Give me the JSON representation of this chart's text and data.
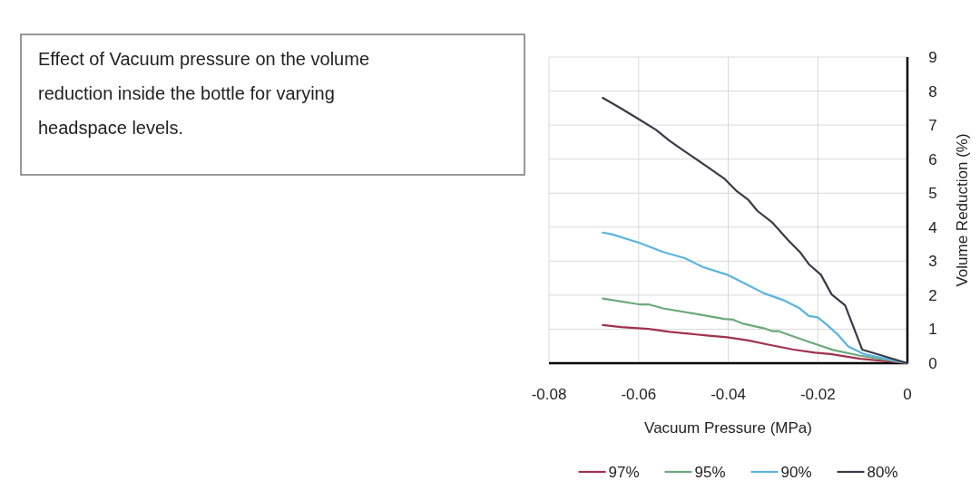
{
  "chart_data": {
    "type": "line",
    "title": "Effect of Vacuum pressure on the volume reduction inside the bottle for varying headspace levels.",
    "xlabel": "Vacuum Pressure (MPa)",
    "ylabel": "Volume Reduction (%)",
    "xlim": [
      -0.08,
      0
    ],
    "xticks": [
      -0.08,
      -0.06,
      -0.04,
      -0.02,
      0
    ],
    "ylim": [
      0,
      9
    ],
    "yticks": [
      0,
      1,
      2,
      3,
      4,
      5,
      6,
      7,
      8,
      9
    ],
    "grid": true,
    "legend": "bottom",
    "marker": "none",
    "line_style": "solid",
    "series": [
      {
        "name": "97%",
        "color": "#a3304f",
        "x": [
          -0.068,
          -0.0639,
          -0.0578,
          -0.0531,
          -0.0443,
          -0.0402,
          -0.0355,
          -0.0308,
          -0.0254,
          -0.0206,
          -0.0172,
          -0.0105,
          0
        ],
        "values": [
          1.12,
          1.06,
          1.01,
          0.92,
          0.81,
          0.76,
          0.67,
          0.54,
          0.4,
          0.31,
          0.27,
          0.13,
          0
        ]
      },
      {
        "name": "95%",
        "color": "#6aaa7a",
        "x": [
          -0.068,
          -0.0599,
          -0.0578,
          -0.0545,
          -0.0463,
          -0.0409,
          -0.0389,
          -0.0369,
          -0.0321,
          -0.0301,
          -0.0287,
          -0.024,
          -0.02,
          -0.0166,
          -0.0105,
          0
        ],
        "values": [
          1.9,
          1.73,
          1.73,
          1.61,
          1.43,
          1.3,
          1.28,
          1.17,
          1.03,
          0.94,
          0.94,
          0.72,
          0.54,
          0.39,
          0.22,
          0
        ]
      },
      {
        "name": "90%",
        "color": "#5ab4e0",
        "x": [
          -0.068,
          -0.066,
          -0.0599,
          -0.0545,
          -0.0497,
          -0.0457,
          -0.0402,
          -0.0355,
          -0.0321,
          -0.0274,
          -0.024,
          -0.022,
          -0.02,
          -0.0179,
          -0.0156,
          -0.0132,
          -0.0098,
          0
        ],
        "values": [
          3.84,
          3.79,
          3.54,
          3.27,
          3.09,
          2.83,
          2.6,
          2.29,
          2.06,
          1.84,
          1.61,
          1.39,
          1.35,
          1.12,
          0.85,
          0.49,
          0.27,
          0
        ]
      },
      {
        "name": "80%",
        "color": "#3a3a48",
        "x": [
          -0.068,
          -0.0639,
          -0.0599,
          -0.0561,
          -0.0531,
          -0.0497,
          -0.0443,
          -0.0409,
          -0.0382,
          -0.0355,
          -0.0335,
          -0.0301,
          -0.0267,
          -0.024,
          -0.022,
          -0.0193,
          -0.0169,
          -0.0139,
          -0.0101,
          0
        ],
        "values": [
          7.8,
          7.49,
          7.17,
          6.86,
          6.54,
          6.23,
          5.74,
          5.43,
          5.07,
          4.8,
          4.48,
          4.13,
          3.63,
          3.27,
          2.91,
          2.6,
          2.02,
          1.7,
          0.4,
          0
        ]
      }
    ]
  }
}
